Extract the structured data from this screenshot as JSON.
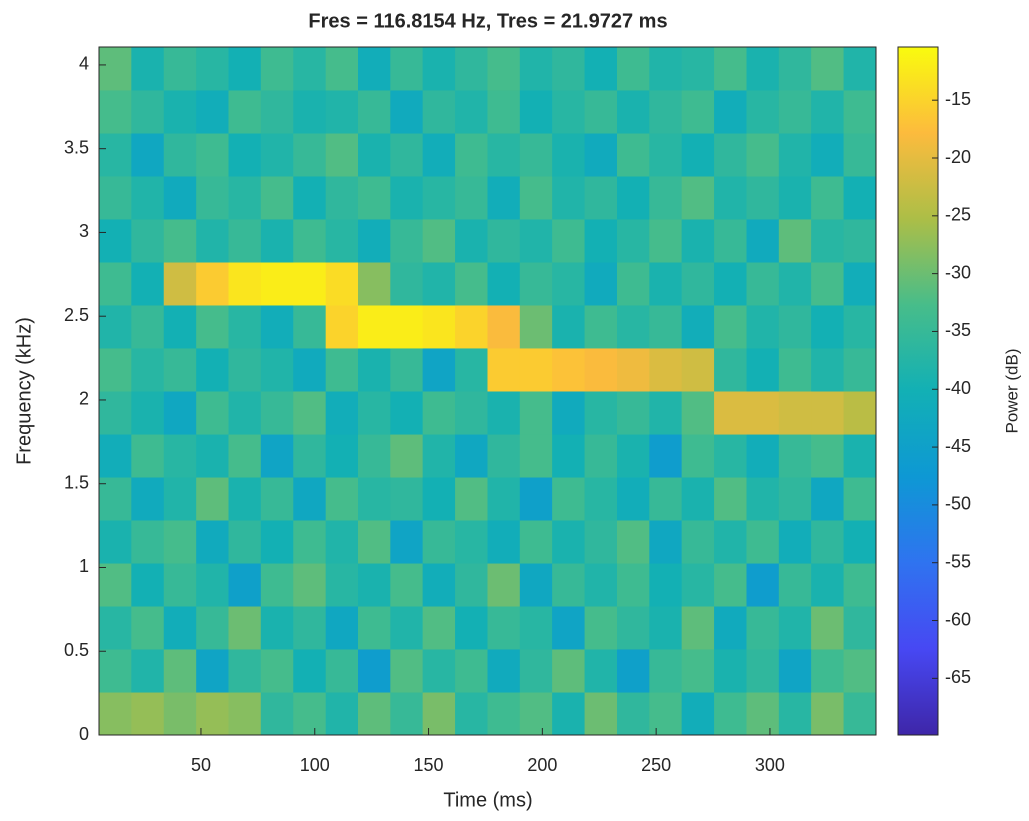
{
  "chart_data": {
    "type": "heatmap",
    "title": "Fres = 116.8154 Hz, Tres = 21.9727 ms",
    "xlabel": "Time (ms)",
    "ylabel": "Frequency (kHz)",
    "colorbar_label": "Power (dB)",
    "xlim": [
      5.2,
      346.6
    ],
    "xticks": [
      50,
      100,
      150,
      200,
      250,
      300
    ],
    "ylim": [
      0,
      4.107
    ],
    "yticks": [
      0,
      0.5,
      1,
      1.5,
      2,
      2.5,
      3,
      3.5,
      4
    ],
    "clim": [
      -69.9,
      -10.4
    ],
    "cticks": [
      -65,
      -60,
      -55,
      -50,
      -45,
      -40,
      -35,
      -30,
      -25,
      -20,
      -15
    ],
    "colormap": [
      "#3e26a8",
      "#4748f3",
      "#2f73f0",
      "#0e98d4",
      "#12b0b5",
      "#47bd8a",
      "#acbe47",
      "#fcbb3d",
      "#f9fb0e"
    ],
    "x": [
      12.3,
      26.5,
      40.8,
      55.0,
      69.2,
      83.4,
      97.7,
      111.9,
      126.1,
      140.3,
      154.5,
      168.8,
      183.0,
      197.2,
      211.4,
      225.7,
      239.9,
      254.1,
      268.3,
      282.6,
      296.8,
      311.0,
      325.2,
      339.5
    ],
    "y": [
      0.128,
      0.385,
      0.642,
      0.898,
      1.155,
      1.412,
      1.668,
      1.925,
      2.182,
      2.439,
      2.695,
      2.952,
      3.209,
      3.465,
      3.722,
      3.979
    ],
    "z": [
      [
        -28,
        -27,
        -29,
        -27,
        -28,
        -36,
        -33,
        -38,
        -31,
        -35,
        -29,
        -37,
        -34,
        -32,
        -39,
        -30,
        -36,
        -33,
        -41,
        -34,
        -31,
        -37,
        -29,
        -35
      ],
      [
        -34,
        -38,
        -31,
        -44,
        -36,
        -33,
        -40,
        -35,
        -46,
        -32,
        -37,
        -34,
        -42,
        -36,
        -31,
        -38,
        -45,
        -35,
        -33,
        -39,
        -36,
        -44,
        -34,
        -32
      ],
      [
        -37,
        -33,
        -41,
        -35,
        -30,
        -39,
        -36,
        -43,
        -34,
        -38,
        -32,
        -40,
        -35,
        -37,
        -44,
        -33,
        -36,
        -39,
        -31,
        -42,
        -35,
        -38,
        -30,
        -36
      ],
      [
        -32,
        -40,
        -35,
        -38,
        -45,
        -34,
        -31,
        -37,
        -39,
        -33,
        -41,
        -36,
        -30,
        -43,
        -35,
        -38,
        -34,
        -40,
        -37,
        -33,
        -46,
        -35,
        -39,
        -34
      ],
      [
        -39,
        -35,
        -33,
        -42,
        -36,
        -40,
        -34,
        -38,
        -32,
        -44,
        -35,
        -37,
        -41,
        -34,
        -39,
        -36,
        -32,
        -43,
        -35,
        -38,
        -34,
        -41,
        -36,
        -40
      ],
      [
        -35,
        -42,
        -38,
        -31,
        -39,
        -35,
        -43,
        -33,
        -37,
        -36,
        -40,
        -32,
        -38,
        -45,
        -34,
        -37,
        -41,
        -35,
        -39,
        -32,
        -38,
        -36,
        -43,
        -34
      ],
      [
        -41,
        -34,
        -37,
        -39,
        -33,
        -44,
        -36,
        -40,
        -35,
        -31,
        -38,
        -43,
        -36,
        -33,
        -40,
        -35,
        -39,
        -46,
        -34,
        -37,
        -41,
        -35,
        -33,
        -39
      ],
      [
        -36,
        -39,
        -43,
        -34,
        -38,
        -35,
        -32,
        -41,
        -37,
        -40,
        -34,
        -36,
        -39,
        -33,
        -42,
        -37,
        -35,
        -38,
        -32,
        -21,
        -21,
        -22,
        -22,
        -24
      ],
      [
        -33,
        -37,
        -35,
        -40,
        -36,
        -38,
        -42,
        -34,
        -39,
        -35,
        -44,
        -37,
        -16,
        -16,
        -17,
        -18,
        -19,
        -21,
        -22,
        -36,
        -40,
        -34,
        -38,
        -35
      ],
      [
        -38,
        -35,
        -40,
        -33,
        -37,
        -41,
        -35,
        -15,
        -12,
        -12,
        -13,
        -15,
        -18,
        -30,
        -39,
        -34,
        -37,
        -35,
        -41,
        -33,
        -38,
        -36,
        -40,
        -37
      ],
      [
        -34,
        -40,
        -22,
        -16,
        -13,
        -12,
        -12,
        -14,
        -28,
        -36,
        -38,
        -33,
        -40,
        -35,
        -37,
        -42,
        -34,
        -39,
        -36,
        -40,
        -35,
        -38,
        -33,
        -41
      ],
      [
        -40,
        -36,
        -33,
        -38,
        -35,
        -39,
        -34,
        -37,
        -41,
        -35,
        -32,
        -39,
        -36,
        -38,
        -34,
        -40,
        -37,
        -33,
        -39,
        -35,
        -42,
        -31,
        -37,
        -36
      ],
      [
        -35,
        -38,
        -42,
        -35,
        -37,
        -33,
        -40,
        -36,
        -34,
        -39,
        -37,
        -35,
        -41,
        -33,
        -38,
        -36,
        -40,
        -35,
        -32,
        -38,
        -36,
        -39,
        -34,
        -40
      ],
      [
        -37,
        -43,
        -36,
        -34,
        -40,
        -38,
        -35,
        -32,
        -39,
        -36,
        -41,
        -34,
        -37,
        -35,
        -39,
        -42,
        -34,
        -37,
        -40,
        -36,
        -33,
        -38,
        -41,
        -35
      ],
      [
        -33,
        -36,
        -39,
        -41,
        -34,
        -36,
        -39,
        -38,
        -35,
        -42,
        -36,
        -38,
        -34,
        -40,
        -37,
        -35,
        -39,
        -36,
        -34,
        -41,
        -37,
        -35,
        -38,
        -34
      ],
      [
        -31,
        -39,
        -35,
        -37,
        -40,
        -34,
        -37,
        -33,
        -41,
        -35,
        -39,
        -36,
        -33,
        -38,
        -36,
        -40,
        -34,
        -38,
        -37,
        -33,
        -39,
        -36,
        -32,
        -38
      ]
    ]
  }
}
